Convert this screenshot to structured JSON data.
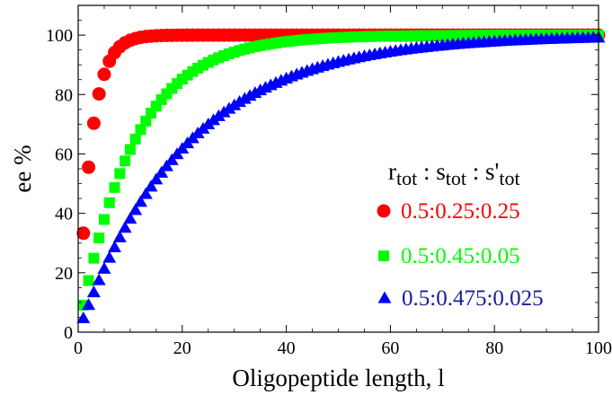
{
  "chart_data": {
    "type": "scatter",
    "xlabel": "Oligopeptide length, l",
    "ylabel": "ee %",
    "xlim": [
      0,
      100
    ],
    "ylim": [
      0,
      110
    ],
    "x_ticks": [
      0,
      20,
      40,
      60,
      80,
      100
    ],
    "y_ticks": [
      0,
      20,
      40,
      60,
      80,
      100
    ],
    "grid": false,
    "legend_position": "center-right",
    "legend_title": {
      "r": "r",
      "r_sub": "tot",
      "s": "s",
      "s_sub": "tot",
      "sp": "s'",
      "sp_sub": "tot",
      "sep": " : "
    },
    "series": [
      {
        "name": "0.5:0.25:0.25",
        "marker": "circle",
        "color": "#ff0000",
        "x_range": [
          1,
          100
        ],
        "model": "1-(1-ee1)^l",
        "values_sample": {
          "1": 33.3,
          "2": 59.9,
          "3": 77.4,
          "4": 88.0,
          "5": 93.8,
          "10": 99.8,
          "100": 100.0
        }
      },
      {
        "name": "0.5:0.45:0.05",
        "marker": "square",
        "color": "#00ff00",
        "x_range": [
          1,
          100
        ],
        "model": "1-(1-ee1)^l",
        "values_sample": {
          "1": 9.1,
          "2": 15.4,
          "5": 33.0,
          "10": 58.0,
          "20": 84.0,
          "40": 98.0,
          "100": 100.0
        }
      },
      {
        "name": "0.5:0.475:0.025",
        "marker": "triangle",
        "color": "#0000ff",
        "x_range": [
          1,
          100
        ],
        "model": "1-(1-ee1)^l",
        "values_sample": {
          "1": 4.7,
          "5": 18.0,
          "10": 32.0,
          "20": 53.5,
          "40": 78.4,
          "60": 90.0,
          "100": 98.0
        }
      }
    ]
  }
}
